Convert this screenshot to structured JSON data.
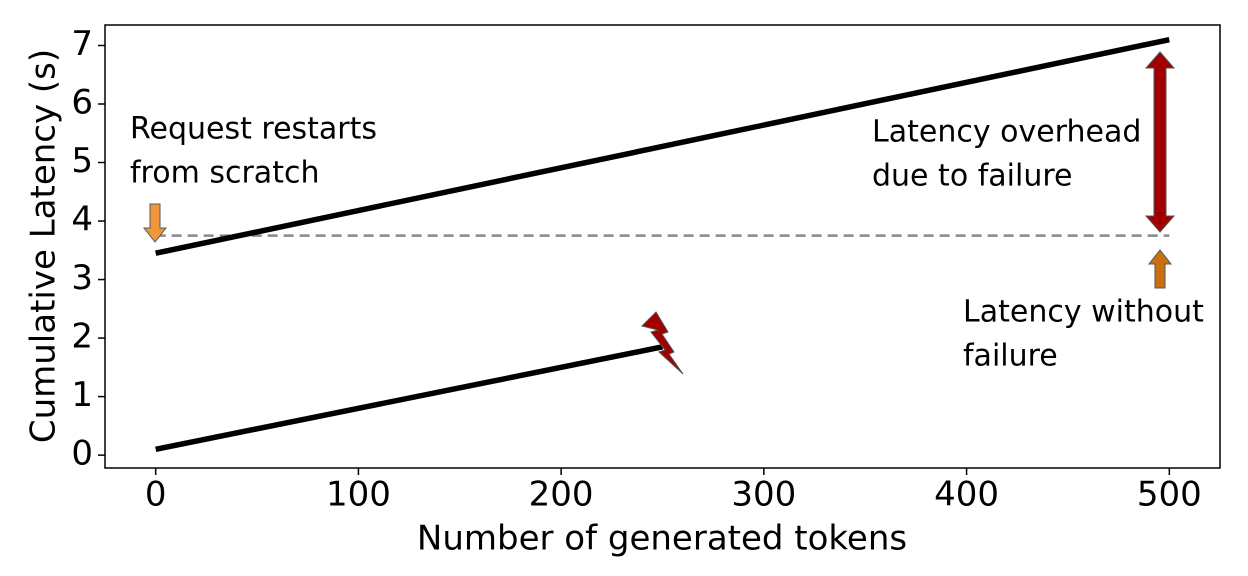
{
  "chart_data": {
    "type": "line",
    "xlabel": "Number of generated tokens",
    "ylabel": "Cumulative Latency (s)",
    "xlim": [
      -25,
      525
    ],
    "ylim": [
      -0.22,
      7.35
    ],
    "xticks": [
      0,
      100,
      200,
      300,
      400,
      500
    ],
    "yticks": [
      0,
      1,
      2,
      3,
      4,
      5,
      6,
      7
    ],
    "series": [
      {
        "color": "#000000",
        "x": [
          0,
          250
        ],
        "values": [
          0.1,
          1.85
        ]
      },
      {
        "color": "#000000",
        "x": [
          0,
          500
        ],
        "values": [
          3.45,
          7.1
        ]
      }
    ],
    "reference_line": {
      "y": 3.75,
      "color": "#888888"
    },
    "annotations": [
      {
        "lines": [
          "Request restarts",
          "from scratch"
        ]
      },
      {
        "lines": [
          "Latency overhead",
          "due to failure"
        ]
      },
      {
        "lines": [
          "Latency without",
          "failure"
        ]
      }
    ]
  }
}
